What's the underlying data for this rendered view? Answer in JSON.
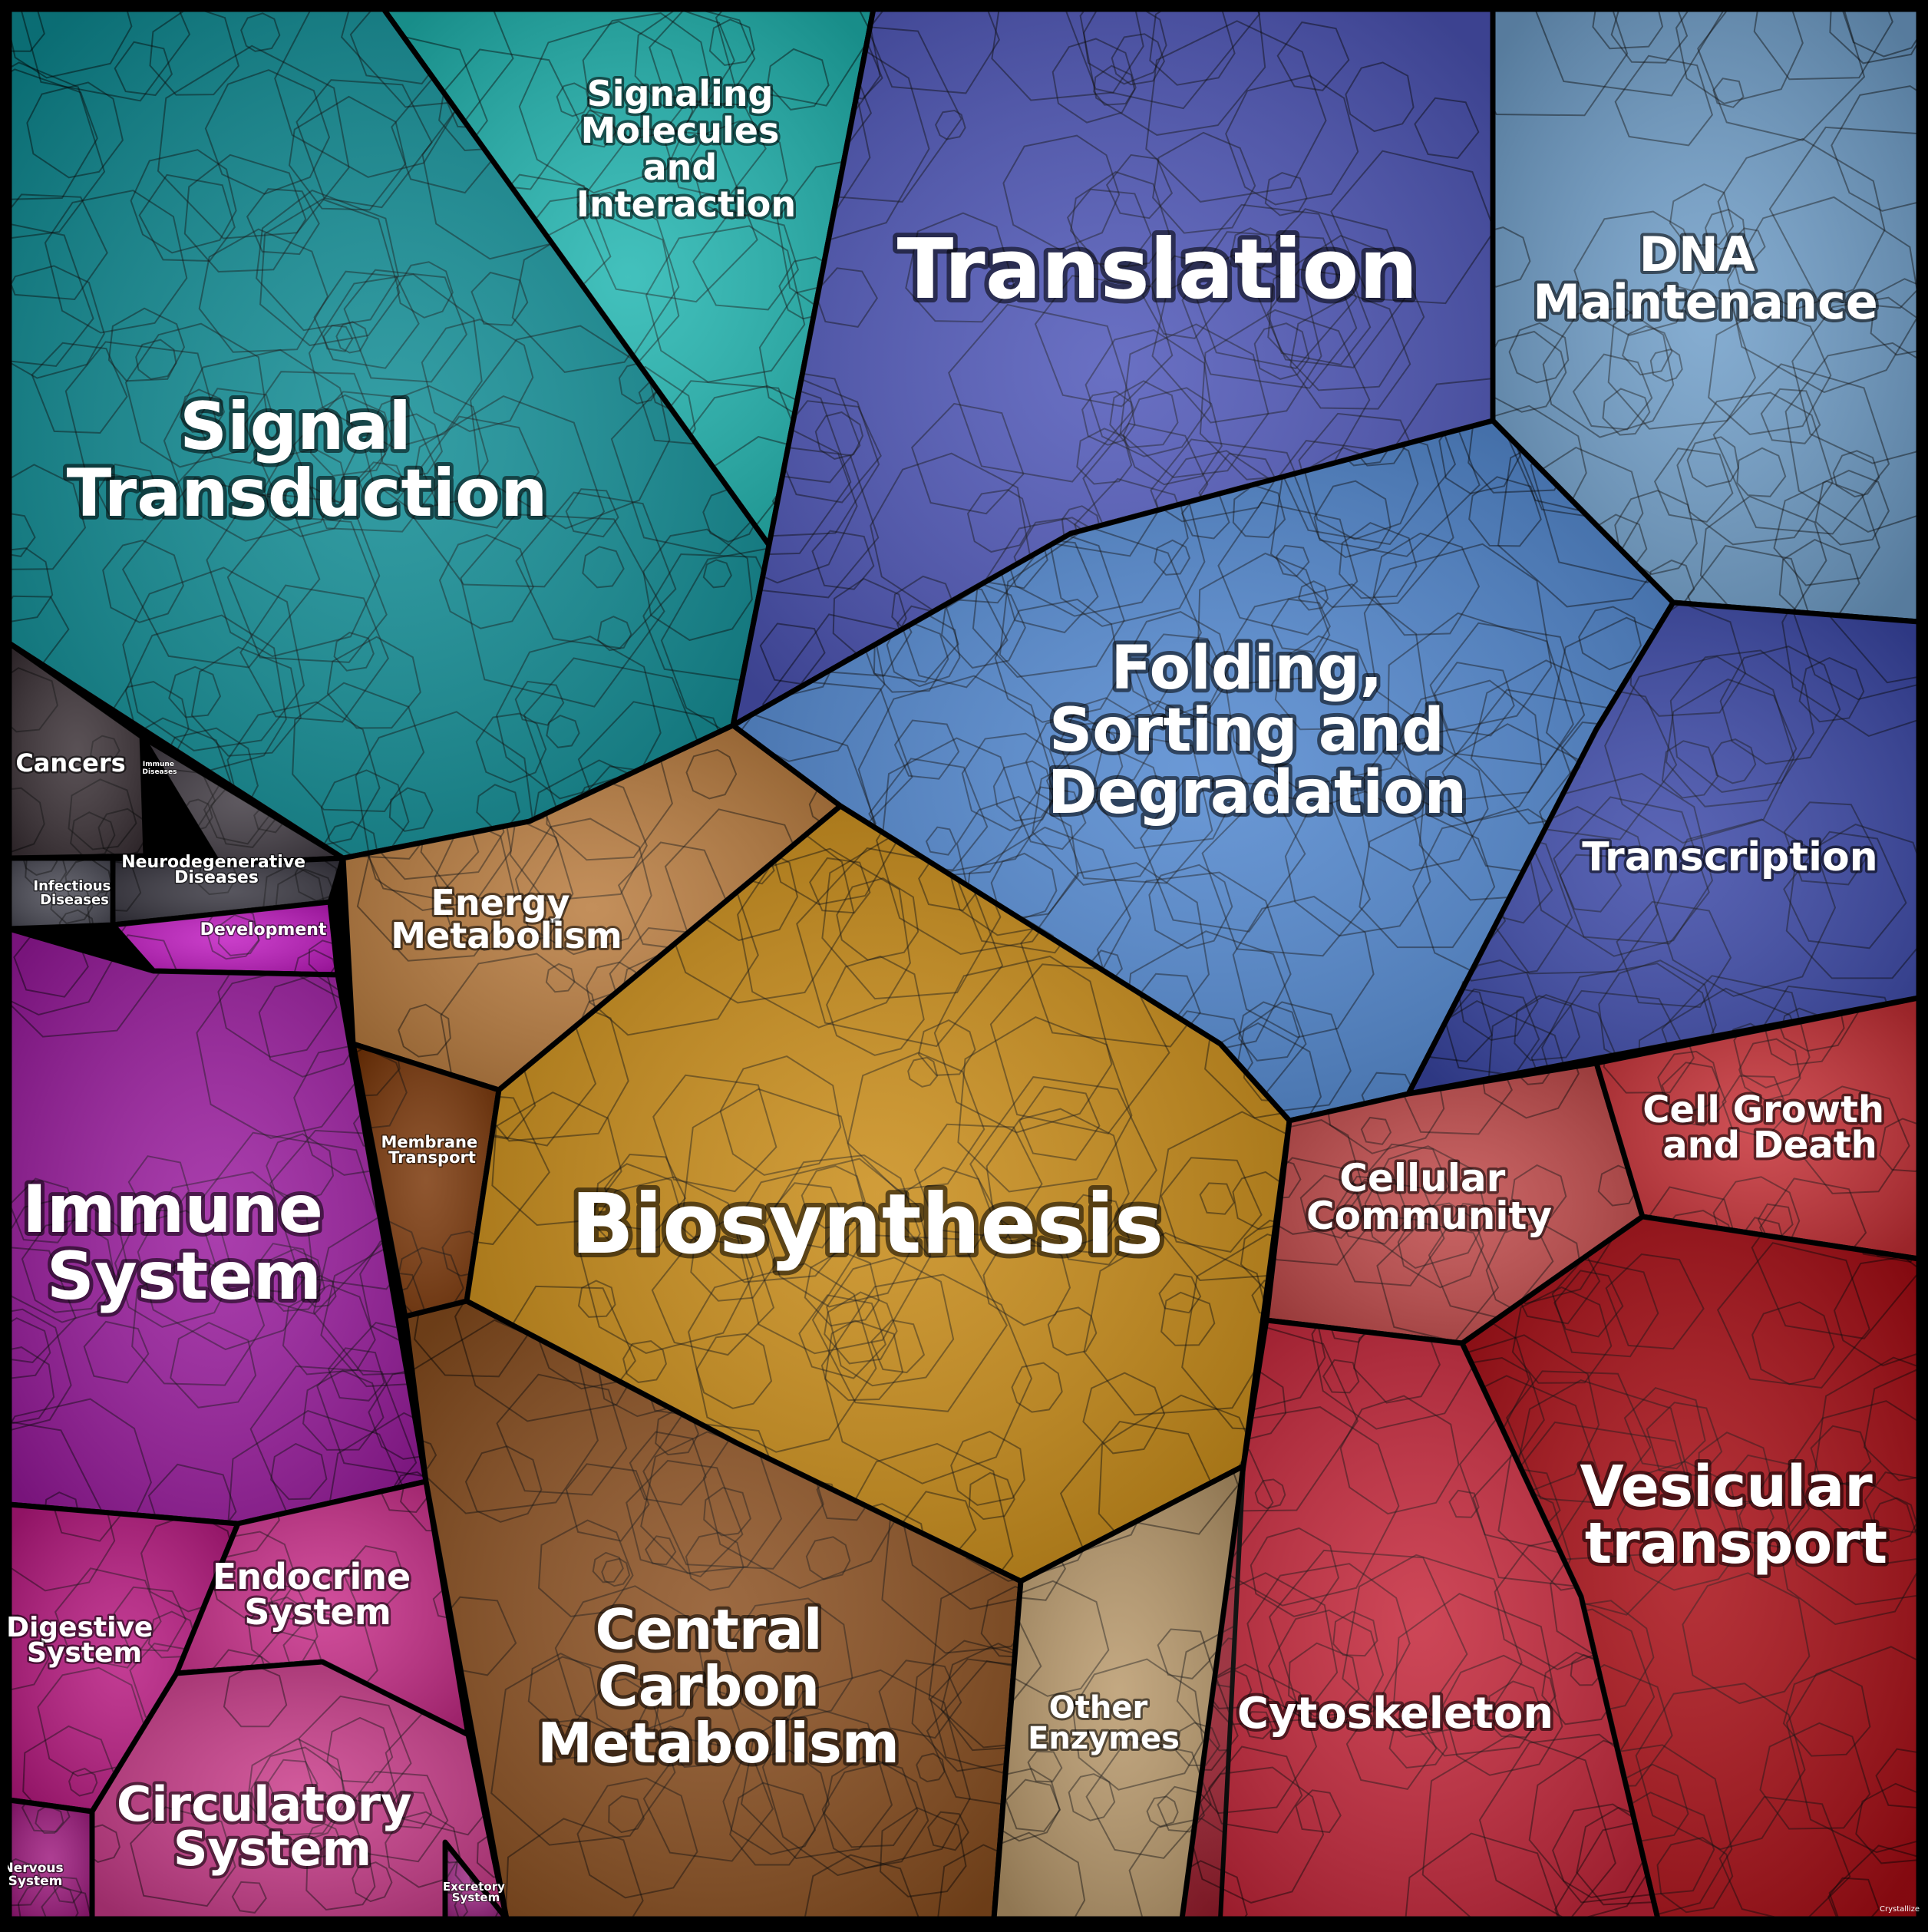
{
  "diagram": {
    "type": "voronoi-treemap",
    "regions": [
      {
        "id": "signal-transduction",
        "label": "Signal Transduction",
        "color": "#0e8c94"
      },
      {
        "id": "signaling-molecules",
        "label": "Signaling Molecules and Interaction",
        "color": "#1fb5b0"
      },
      {
        "id": "translation",
        "label": "Translation",
        "color": "#4d55b8"
      },
      {
        "id": "dna-maintenance",
        "label": "DNA Maintenance",
        "color": "#6f9ec9"
      },
      {
        "id": "folding",
        "label": "Folding, Sorting and Degradation",
        "color": "#4f86cf"
      },
      {
        "id": "transcription",
        "label": "Transcription",
        "color": "#3b48a8"
      },
      {
        "id": "cancers",
        "label": "Cancers",
        "color": "#3a3035"
      },
      {
        "id": "immune-diseases",
        "label": "Immune Diseases",
        "color": "#403a42"
      },
      {
        "id": "neurodegenerative",
        "label": "Neurodegenerative Diseases",
        "color": "#383640"
      },
      {
        "id": "infectious",
        "label": "Infectious Diseases",
        "color": "#4a4a55"
      },
      {
        "id": "development",
        "label": "Development",
        "color": "#c01ac0"
      },
      {
        "id": "immune-system",
        "label": "Immune System",
        "color": "#9a1a9e"
      },
      {
        "id": "energy-metabolism",
        "label": "Energy Metabolism",
        "color": "#b87a3c"
      },
      {
        "id": "membrane-transport",
        "label": "Membrane Transport",
        "color": "#7a3608"
      },
      {
        "id": "biosynthesis",
        "label": "Biosynthesis",
        "color": "#c88a14"
      },
      {
        "id": "central-carbon",
        "label": "Central Carbon Metabolism",
        "color": "#8a4e1e"
      },
      {
        "id": "other-enzymes",
        "label": "Other Enzymes",
        "color": "#b8986a"
      },
      {
        "id": "cellular-community",
        "label": "Cellular Community",
        "color": "#c04848"
      },
      {
        "id": "cell-growth",
        "label": "Cell Growth and Death",
        "color": "#c62f35"
      },
      {
        "id": "vesicular",
        "label": "Vesicular transport",
        "color": "#a80c14"
      },
      {
        "id": "cytoskeleton",
        "label": "Cytoskeleton",
        "color": "#c42438"
      },
      {
        "id": "digestive",
        "label": "Digestive System",
        "color": "#b81880"
      },
      {
        "id": "endocrine",
        "label": "Endocrine System",
        "color": "#c82c88"
      },
      {
        "id": "circulatory",
        "label": "Circulatory System",
        "color": "#c83a88"
      },
      {
        "id": "nervous",
        "label": "Nervous System",
        "color": "#9e1a7e"
      },
      {
        "id": "excretory",
        "label": "Excretory System",
        "color": "#c02aa0"
      }
    ],
    "labels": {
      "signal_transduction": [
        "Signal",
        "Transduction"
      ],
      "signaling_molecules": [
        "Signaling",
        "Molecules",
        "and",
        "Interaction"
      ],
      "translation": [
        "Translation"
      ],
      "dna_maintenance": [
        "DNA",
        "Maintenance"
      ],
      "folding": [
        "Folding,",
        "Sorting and",
        "Degradation"
      ],
      "transcription": [
        "Transcription"
      ],
      "cancers": [
        "Cancers"
      ],
      "immune_diseases": [
        "Immune",
        "Diseases"
      ],
      "neurodegenerative": [
        "Neurodegenerative",
        "Diseases"
      ],
      "infectious": [
        "Infectious",
        "Diseases"
      ],
      "development": [
        "Development"
      ],
      "immune_system": [
        "Immune",
        "System"
      ],
      "energy_metabolism": [
        "Energy",
        "Metabolism"
      ],
      "membrane_transport": [
        "Membrane",
        "Transport"
      ],
      "biosynthesis": [
        "Biosynthesis"
      ],
      "central_carbon": [
        "Central",
        "Carbon",
        "Metabolism"
      ],
      "other_enzymes": [
        "Other",
        "Enzymes"
      ],
      "cellular_community": [
        "Cellular",
        "Community"
      ],
      "cell_growth": [
        "Cell Growth",
        "and Death"
      ],
      "vesicular": [
        "Vesicular",
        "transport"
      ],
      "cytoskeleton": [
        "Cytoskeleton"
      ],
      "digestive": [
        "Digestive",
        "System"
      ],
      "endocrine": [
        "Endocrine",
        "System"
      ],
      "circulatory": [
        "Circulatory",
        "System"
      ],
      "nervous": [
        "Nervous",
        "System"
      ],
      "excretory": [
        "Excretory",
        "System"
      ],
      "watermark": "Crystallize"
    }
  }
}
